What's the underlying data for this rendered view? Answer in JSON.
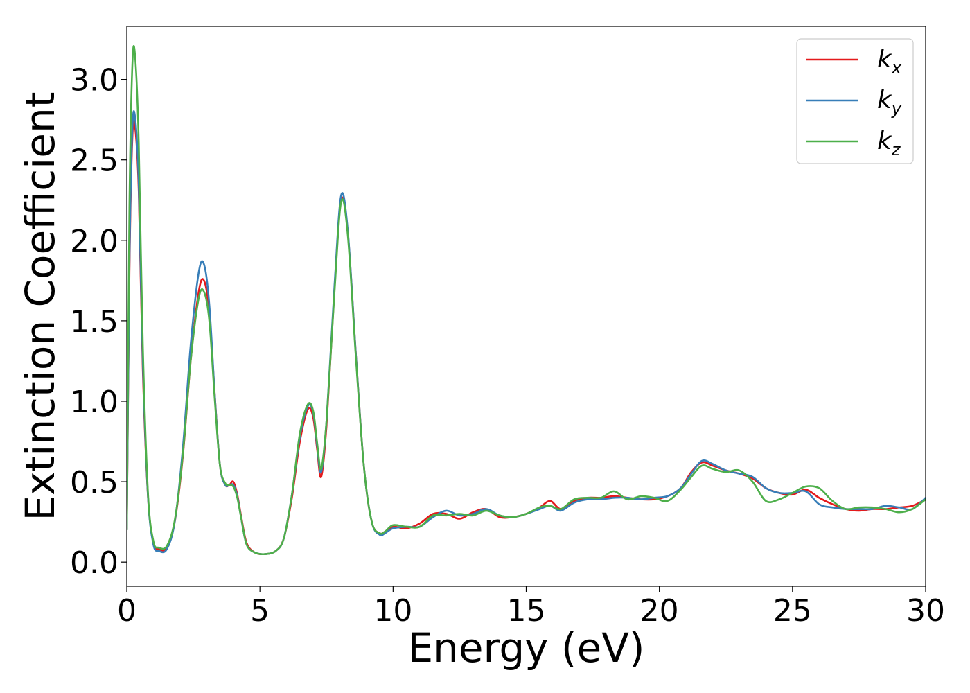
{
  "chart_data": {
    "type": "line",
    "title": "",
    "xlabel": "Energy (eV)",
    "ylabel": "Extinction Coefficient",
    "xlim": [
      0,
      30
    ],
    "ylim": [
      -0.15,
      3.33
    ],
    "xticks": [
      "0",
      "5",
      "10",
      "15",
      "20",
      "25",
      "30"
    ],
    "yticks": [
      "0.0",
      "0.5",
      "1.0",
      "1.5",
      "2.0",
      "2.5",
      "3.0"
    ],
    "grid": false,
    "legend_position": "top-right",
    "colors": {
      "kx": "#e41a1c",
      "ky": "#377eb8",
      "kz": "#4daf4a"
    },
    "series": [
      {
        "name": "kx",
        "name_main": "k",
        "name_sub": "x",
        "color": "#e41a1c",
        "x": [
          0,
          0.1,
          0.2,
          0.3,
          0.45,
          0.6,
          0.8,
          1.0,
          1.2,
          1.5,
          1.8,
          2.1,
          2.4,
          2.7,
          2.9,
          3.1,
          3.3,
          3.5,
          3.7,
          3.85,
          4.0,
          4.15,
          4.3,
          4.5,
          4.8,
          5.2,
          5.6,
          5.9,
          6.2,
          6.5,
          6.8,
          7.0,
          7.15,
          7.3,
          7.5,
          7.8,
          8.05,
          8.3,
          8.6,
          8.9,
          9.2,
          9.5,
          9.7,
          10.0,
          10.5,
          11.0,
          11.5,
          12.0,
          12.5,
          13.0,
          13.5,
          14.0,
          14.5,
          15.0,
          15.5,
          15.9,
          16.3,
          16.8,
          17.3,
          17.8,
          18.3,
          18.8,
          19.3,
          19.8,
          20.3,
          20.8,
          21.2,
          21.6,
          22.0,
          22.5,
          23.0,
          23.5,
          24.0,
          24.5,
          25.0,
          25.5,
          26.0,
          26.5,
          27.0,
          27.5,
          28.0,
          28.5,
          29.0,
          29.5,
          30.0
        ],
        "y": [
          0.2,
          1.8,
          2.6,
          2.72,
          2.3,
          1.2,
          0.4,
          0.12,
          0.08,
          0.09,
          0.25,
          0.65,
          1.25,
          1.68,
          1.75,
          1.55,
          1.05,
          0.6,
          0.48,
          0.48,
          0.5,
          0.42,
          0.28,
          0.12,
          0.06,
          0.05,
          0.07,
          0.15,
          0.4,
          0.75,
          0.95,
          0.9,
          0.7,
          0.53,
          0.85,
          1.7,
          2.25,
          2.05,
          1.3,
          0.6,
          0.25,
          0.18,
          0.19,
          0.22,
          0.21,
          0.24,
          0.3,
          0.3,
          0.27,
          0.31,
          0.33,
          0.28,
          0.28,
          0.3,
          0.34,
          0.38,
          0.33,
          0.38,
          0.4,
          0.4,
          0.41,
          0.4,
          0.39,
          0.39,
          0.41,
          0.46,
          0.56,
          0.62,
          0.6,
          0.57,
          0.55,
          0.52,
          0.46,
          0.43,
          0.42,
          0.45,
          0.4,
          0.36,
          0.33,
          0.32,
          0.33,
          0.33,
          0.34,
          0.35,
          0.39
        ]
      },
      {
        "name": "ky",
        "name_main": "k",
        "name_sub": "y",
        "color": "#377eb8",
        "x": [
          0,
          0.1,
          0.2,
          0.3,
          0.45,
          0.6,
          0.8,
          1.0,
          1.2,
          1.5,
          1.8,
          2.1,
          2.4,
          2.7,
          2.9,
          3.1,
          3.3,
          3.5,
          3.7,
          3.85,
          4.0,
          4.15,
          4.3,
          4.5,
          4.8,
          5.2,
          5.6,
          5.9,
          6.2,
          6.5,
          6.8,
          7.0,
          7.15,
          7.3,
          7.5,
          7.8,
          8.05,
          8.3,
          8.6,
          8.9,
          9.2,
          9.5,
          9.7,
          10.0,
          10.5,
          11.0,
          11.5,
          12.0,
          12.5,
          13.0,
          13.5,
          14.0,
          14.5,
          15.0,
          15.5,
          15.9,
          16.3,
          16.8,
          17.3,
          17.8,
          18.3,
          18.8,
          19.3,
          19.8,
          20.3,
          20.8,
          21.2,
          21.6,
          22.0,
          22.5,
          23.0,
          23.5,
          24.0,
          24.5,
          25.0,
          25.5,
          26.0,
          26.5,
          27.0,
          27.5,
          28.0,
          28.5,
          29.0,
          29.5,
          30.0
        ],
        "y": [
          0.2,
          1.85,
          2.65,
          2.78,
          2.35,
          1.25,
          0.4,
          0.11,
          0.07,
          0.08,
          0.25,
          0.7,
          1.35,
          1.8,
          1.85,
          1.6,
          1.05,
          0.6,
          0.48,
          0.48,
          0.48,
          0.41,
          0.27,
          0.11,
          0.06,
          0.05,
          0.07,
          0.15,
          0.42,
          0.78,
          0.97,
          0.93,
          0.72,
          0.56,
          0.88,
          1.72,
          2.28,
          2.06,
          1.3,
          0.6,
          0.25,
          0.17,
          0.18,
          0.21,
          0.22,
          0.22,
          0.28,
          0.32,
          0.29,
          0.3,
          0.33,
          0.29,
          0.28,
          0.3,
          0.33,
          0.35,
          0.32,
          0.37,
          0.39,
          0.39,
          0.4,
          0.4,
          0.39,
          0.4,
          0.41,
          0.46,
          0.55,
          0.63,
          0.61,
          0.57,
          0.55,
          0.53,
          0.46,
          0.43,
          0.43,
          0.44,
          0.36,
          0.34,
          0.33,
          0.33,
          0.33,
          0.35,
          0.34,
          0.33,
          0.4
        ]
      },
      {
        "name": "kz",
        "name_main": "k",
        "name_sub": "z",
        "color": "#4daf4a",
        "x": [
          0,
          0.1,
          0.2,
          0.3,
          0.45,
          0.6,
          0.8,
          1.0,
          1.2,
          1.5,
          1.8,
          2.1,
          2.4,
          2.7,
          2.9,
          3.1,
          3.3,
          3.5,
          3.7,
          3.85,
          4.0,
          4.15,
          4.3,
          4.5,
          4.8,
          5.2,
          5.6,
          5.9,
          6.2,
          6.5,
          6.8,
          7.0,
          7.15,
          7.3,
          7.5,
          7.8,
          8.05,
          8.3,
          8.6,
          8.9,
          9.2,
          9.5,
          9.7,
          10.0,
          10.5,
          11.0,
          11.5,
          12.0,
          12.5,
          13.0,
          13.5,
          14.0,
          14.5,
          15.0,
          15.5,
          15.9,
          16.3,
          16.8,
          17.3,
          17.8,
          18.3,
          18.8,
          19.3,
          19.8,
          20.3,
          20.8,
          21.2,
          21.6,
          22.0,
          22.5,
          23.0,
          23.5,
          24.0,
          24.5,
          25.0,
          25.5,
          26.0,
          26.5,
          27.0,
          27.5,
          28.0,
          28.5,
          29.0,
          29.5,
          30.0
        ],
        "y": [
          0.2,
          2.2,
          3.05,
          3.17,
          2.6,
          1.35,
          0.42,
          0.13,
          0.09,
          0.1,
          0.26,
          0.66,
          1.25,
          1.64,
          1.68,
          1.5,
          1.02,
          0.6,
          0.49,
          0.48,
          0.47,
          0.4,
          0.27,
          0.11,
          0.06,
          0.05,
          0.07,
          0.15,
          0.42,
          0.8,
          0.98,
          0.94,
          0.74,
          0.58,
          0.88,
          1.68,
          2.24,
          2.03,
          1.28,
          0.6,
          0.25,
          0.18,
          0.19,
          0.23,
          0.22,
          0.22,
          0.29,
          0.29,
          0.3,
          0.29,
          0.32,
          0.29,
          0.28,
          0.3,
          0.34,
          0.35,
          0.33,
          0.39,
          0.4,
          0.4,
          0.44,
          0.39,
          0.41,
          0.4,
          0.38,
          0.45,
          0.53,
          0.6,
          0.58,
          0.56,
          0.57,
          0.5,
          0.38,
          0.39,
          0.43,
          0.47,
          0.46,
          0.38,
          0.33,
          0.34,
          0.34,
          0.33,
          0.31,
          0.33,
          0.39
        ]
      }
    ]
  }
}
